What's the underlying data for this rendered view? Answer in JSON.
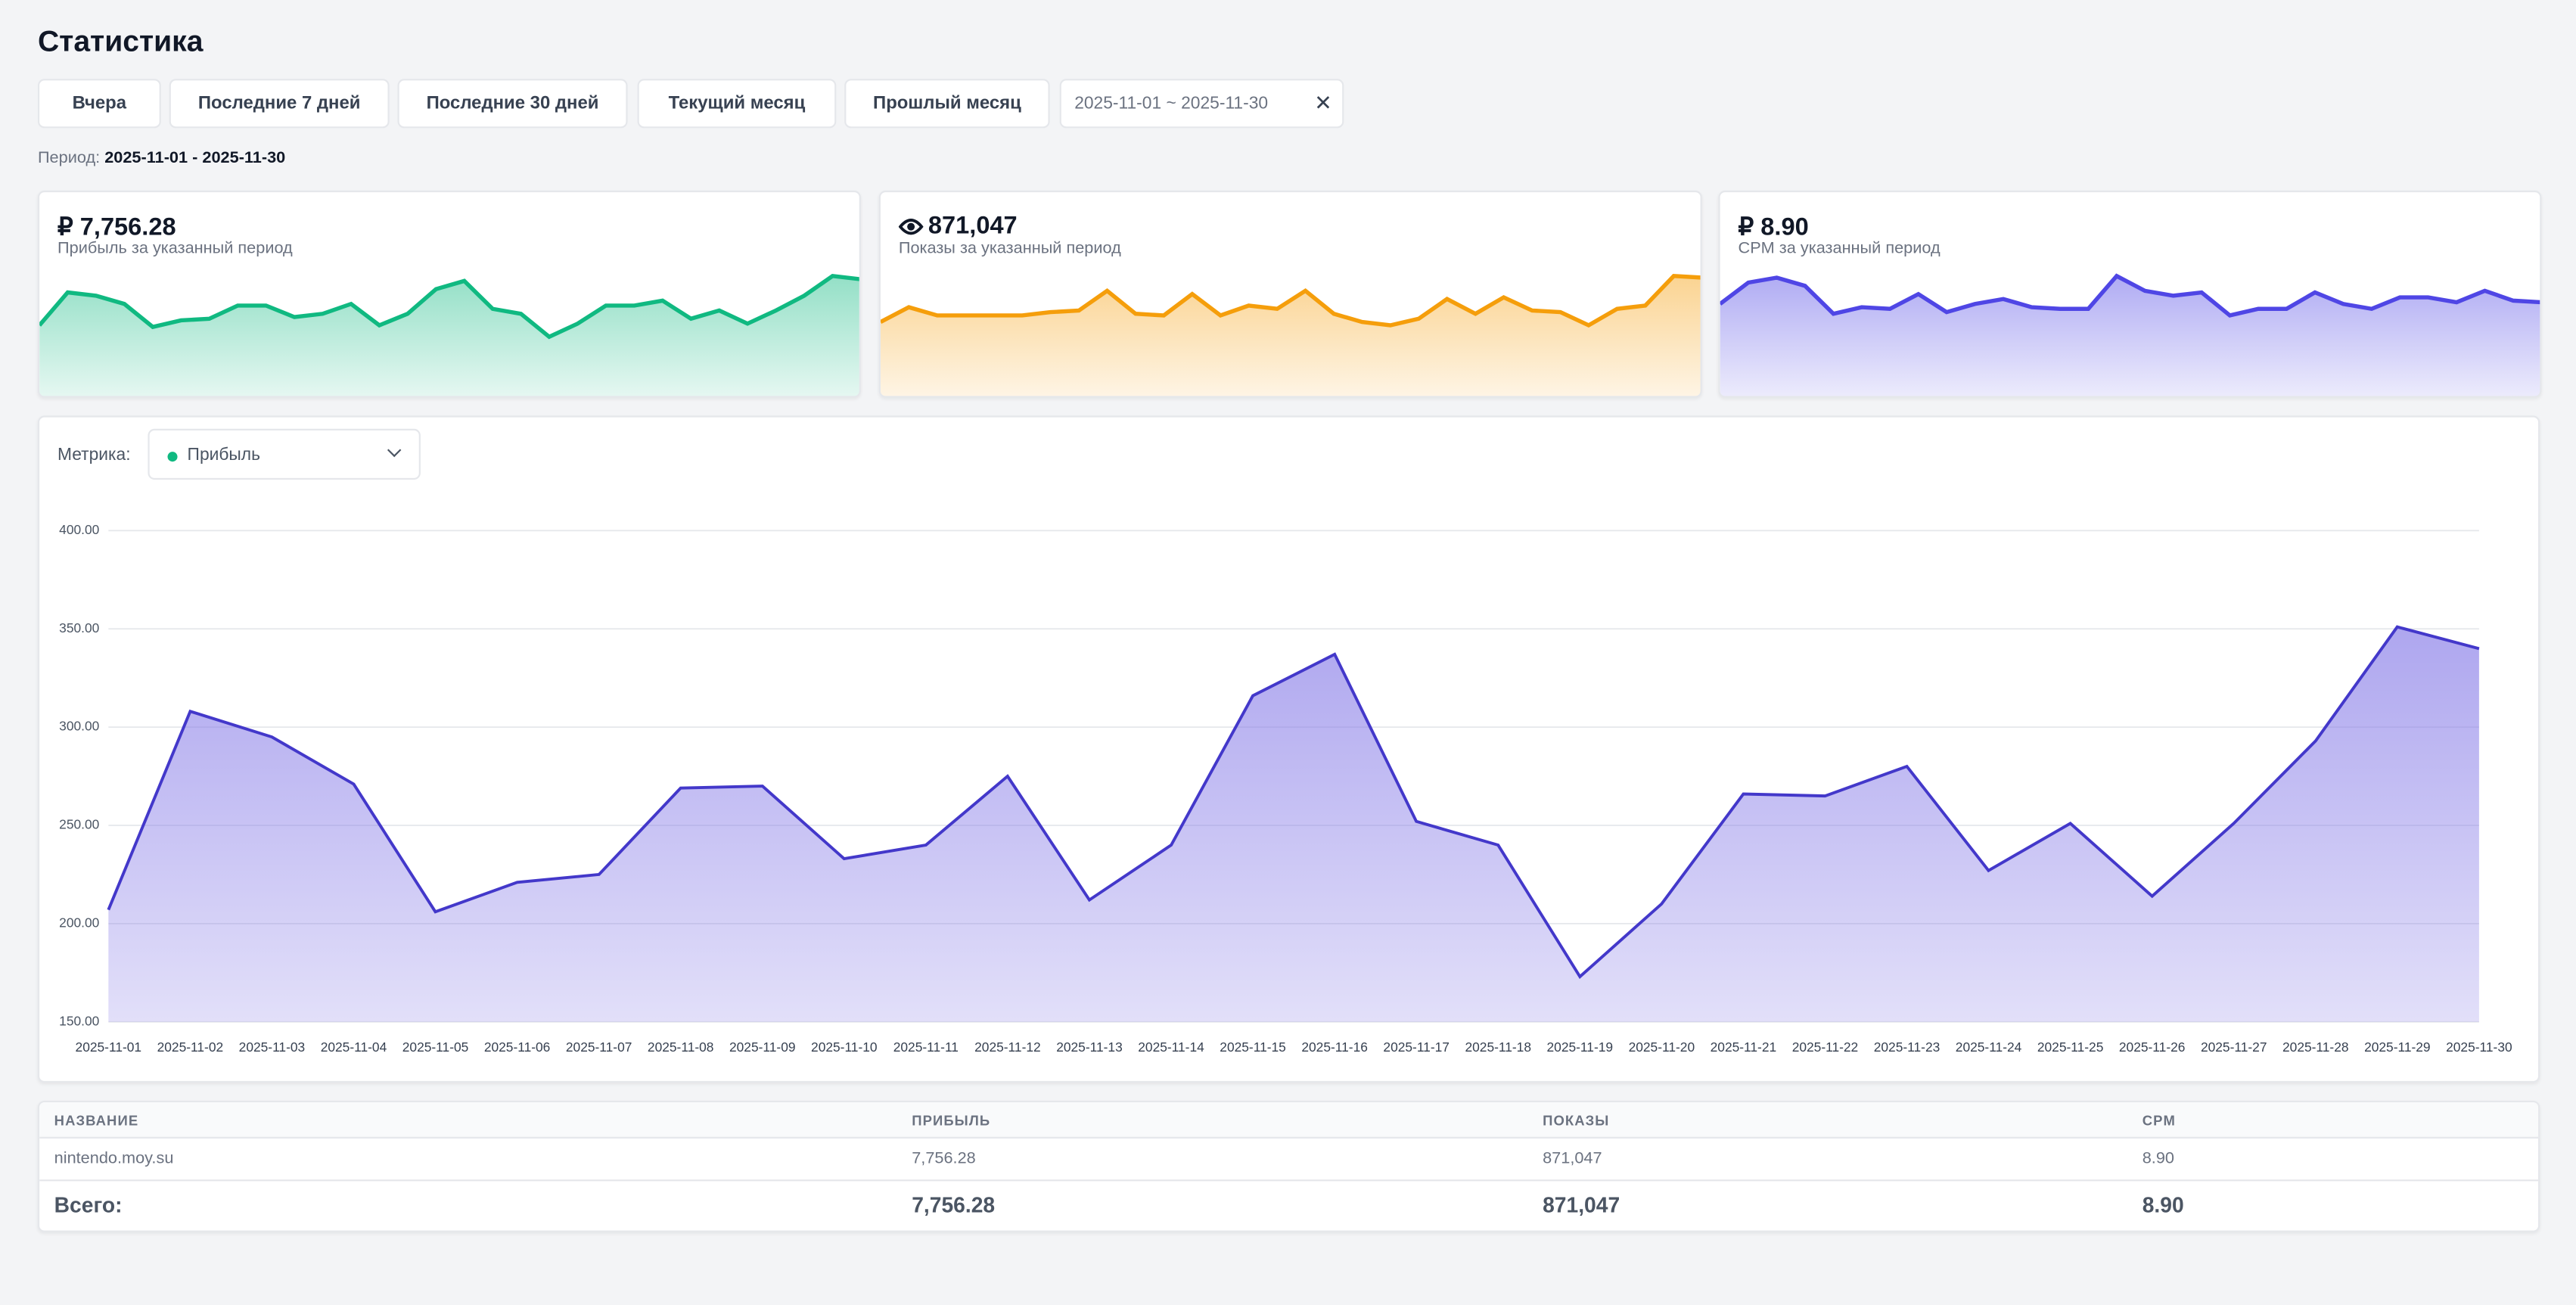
{
  "header": {
    "title": "Статистика"
  },
  "filters": {
    "buttons": [
      "Вчера",
      "Последние 7 дней",
      "Последние 30 дней",
      "Текущий месяц",
      "Прошлый месяц"
    ],
    "date_range": "2025-11-01 ~ 2025-11-30"
  },
  "period": {
    "label": "Период:",
    "value": "2025-11-01 - 2025-11-30"
  },
  "cards": [
    {
      "value": "₽ 7,756.28",
      "label": "Прибыль за указанный период",
      "color": "#10b981",
      "sparkline": [
        44,
        64,
        62,
        57,
        43,
        47,
        48,
        56,
        56,
        49,
        51,
        57,
        44,
        51,
        66,
        71,
        54,
        51,
        37,
        45,
        56,
        56,
        59,
        48,
        53,
        45,
        53,
        62,
        74,
        72
      ]
    },
    {
      "value": "871,047",
      "label": "Показы за указанный период",
      "color": "#f59e0b",
      "sparkline": [
        46,
        55,
        50,
        50,
        50,
        50,
        52,
        53,
        65,
        51,
        50,
        63,
        50,
        56,
        54,
        65,
        51,
        46,
        44,
        48,
        60,
        51,
        61,
        53,
        52,
        44,
        54,
        56,
        74,
        73
      ]
    },
    {
      "value": "₽ 8.90",
      "label": "CPM за указанный период",
      "color": "#4f46e5",
      "sparkline": [
        57,
        70,
        73,
        68,
        51,
        55,
        54,
        63,
        52,
        57,
        60,
        55,
        54,
        54,
        74,
        65,
        62,
        64,
        50,
        54,
        54,
        64,
        57,
        54,
        61,
        61,
        58,
        65,
        59,
        58
      ]
    }
  ],
  "metric": {
    "label": "Метрика:",
    "selected": "Прибыль"
  },
  "chart_data": {
    "type": "line",
    "categories": [
      "2025-11-01",
      "2025-11-02",
      "2025-11-03",
      "2025-11-04",
      "2025-11-05",
      "2025-11-06",
      "2025-11-07",
      "2025-11-08",
      "2025-11-09",
      "2025-11-10",
      "2025-11-11",
      "2025-11-12",
      "2025-11-13",
      "2025-11-14",
      "2025-11-15",
      "2025-11-16",
      "2025-11-17",
      "2025-11-18",
      "2025-11-19",
      "2025-11-20",
      "2025-11-21",
      "2025-11-22",
      "2025-11-23",
      "2025-11-24",
      "2025-11-25",
      "2025-11-26",
      "2025-11-27",
      "2025-11-28",
      "2025-11-29",
      "2025-11-30"
    ],
    "values": [
      207,
      308,
      295,
      271,
      206,
      221,
      225,
      269,
      270,
      233,
      240,
      275,
      212,
      240,
      316,
      337,
      252,
      240,
      173,
      210,
      266,
      265,
      280,
      227,
      251,
      214,
      251,
      293,
      351,
      340
    ],
    "color": "#4338ca",
    "ylim": [
      150,
      400
    ],
    "yticks": [
      {
        "value": 150,
        "label": "150.00"
      },
      {
        "value": 200,
        "label": "200.00"
      },
      {
        "value": 250,
        "label": "250.00"
      },
      {
        "value": 300,
        "label": "300.00"
      },
      {
        "value": 350,
        "label": "350.00"
      },
      {
        "value": 400,
        "label": "400.00"
      }
    ],
    "grid": true
  },
  "table": {
    "columns": [
      "НАЗВАНИЕ",
      "ПРИБЫЛЬ",
      "ПОКАЗЫ",
      "CPM"
    ],
    "rows": [
      [
        "nintendo.moy.su",
        "7,756.28",
        "871,047",
        "8.90"
      ]
    ],
    "total": [
      "Всего:",
      "7,756.28",
      "871,047",
      "8.90"
    ]
  }
}
